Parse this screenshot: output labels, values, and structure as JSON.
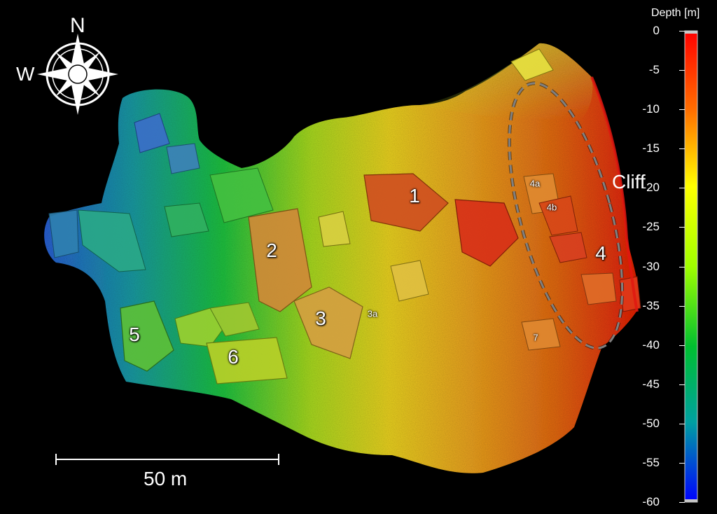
{
  "compass": {
    "north": "N",
    "west": "W"
  },
  "features": [
    "1",
    "2",
    "3",
    "3a",
    "4",
    "4a",
    "4b",
    "5",
    "6",
    "7"
  ],
  "annotation": "Cliff",
  "scale_bar": {
    "label": "50 m"
  },
  "colorbar": {
    "title": "Depth [m]",
    "ticks": [
      "0",
      "-5",
      "-10",
      "-15",
      "-20",
      "-25",
      "-30",
      "-35",
      "-40",
      "-45",
      "-50",
      "-55",
      "-60"
    ],
    "range": [
      0,
      -60
    ],
    "colors": [
      "#ff0000",
      "#ff8800",
      "#ffff00",
      "#00ff00",
      "#00a0a0",
      "#0000ff"
    ]
  }
}
